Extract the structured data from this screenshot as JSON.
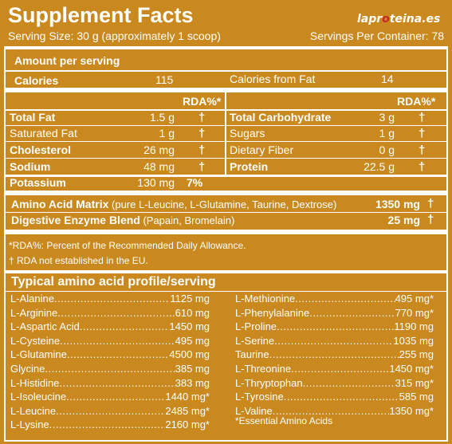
{
  "header": {
    "title": "Supplement Facts",
    "logo_left": "lapr",
    "logo_mid": "o",
    "logo_right": "teina.es",
    "serving_size": "Serving Size: 30 g (approximately 1 scoop)",
    "servings_per_container": "Servings Per Container: 78"
  },
  "amount_per_serving": "Amount per serving",
  "calories": {
    "label": "Calories",
    "value": "115",
    "fat_label": "Calories from Fat",
    "fat_value": "14"
  },
  "rda_header": "RDA%*",
  "left_nutrients": [
    {
      "label": "Total Fat",
      "value": "1.5 g",
      "rda": "†"
    },
    {
      "label": "Saturated Fat",
      "value": "1 g",
      "rda": "†"
    },
    {
      "label": "Cholesterol",
      "value": "26 mg",
      "rda": "†"
    },
    {
      "label": "Sodium",
      "value": "48 mg",
      "rda": "†"
    },
    {
      "label": "Potassium",
      "value": "130 mg",
      "rda": "7%"
    }
  ],
  "right_nutrients": [
    {
      "label": "Total Carbohydrate",
      "value": "3 g",
      "rda": "†"
    },
    {
      "label": "Sugars",
      "value": "1 g",
      "rda": "†"
    },
    {
      "label": "Dietary Fiber",
      "value": "0 g",
      "rda": "†"
    },
    {
      "label": "Protein",
      "value": "22.5 g",
      "rda": "†"
    }
  ],
  "blends": [
    {
      "name": "Amino Acid Matrix",
      "detail": "(pure L-Leucine, L-Glutamine, Taurine, Dextrose)",
      "value": "1350 mg",
      "rda": "†"
    },
    {
      "name": "Digestive Enzyme Blend",
      "detail": "(Papain, Bromelain)",
      "value": "25 mg",
      "rda": "†"
    }
  ],
  "footnotes": {
    "rda": "*RDA%: Percent of the Recommended Daily Allowance.",
    "not_established": "† RDA not established in the EU."
  },
  "amino_title": "Typical amino acid profile/serving",
  "amino_left": [
    {
      "name": "L-Alanine",
      "value": "1125 mg"
    },
    {
      "name": "L-Arginine",
      "value": "610 mg"
    },
    {
      "name": "L-Aspartic Acid",
      "value": "1450 mg"
    },
    {
      "name": "L-Cysteine",
      "value": "495 mg"
    },
    {
      "name": "L-Glutamine",
      "value": "4500 mg"
    },
    {
      "name": "Glycine",
      "value": "385 mg"
    },
    {
      "name": "L-Histidine",
      "value": "383 mg"
    },
    {
      "name": "L-Isoleucine",
      "value": "1440 mg*"
    },
    {
      "name": "L-Leucine",
      "value": "2485 mg*"
    },
    {
      "name": "L-Lysine",
      "value": "2160 mg*"
    }
  ],
  "amino_right": [
    {
      "name": "L-Methionine",
      "value": "495 mg*"
    },
    {
      "name": "L-Phenylalanine",
      "value": "770 mg*"
    },
    {
      "name": "L-Proline",
      "value": "1190 mg"
    },
    {
      "name": "L-Serine",
      "value": "1035 mg"
    },
    {
      "name": "Taurine",
      "value": "255 mg"
    },
    {
      "name": "L-Threonine",
      "value": "1450 mg*"
    },
    {
      "name": "L-Thryptophan",
      "value": "315 mg*"
    },
    {
      "name": "L-Tyrosine",
      "value": "585 mg"
    },
    {
      "name": "L-Valine",
      "value": "1350 mg*"
    }
  ],
  "essential_note": "*Essential Amino Acids",
  "colors": {
    "background": "#c9891e",
    "text": "#ffffff",
    "logo_accent": "#c62828"
  }
}
